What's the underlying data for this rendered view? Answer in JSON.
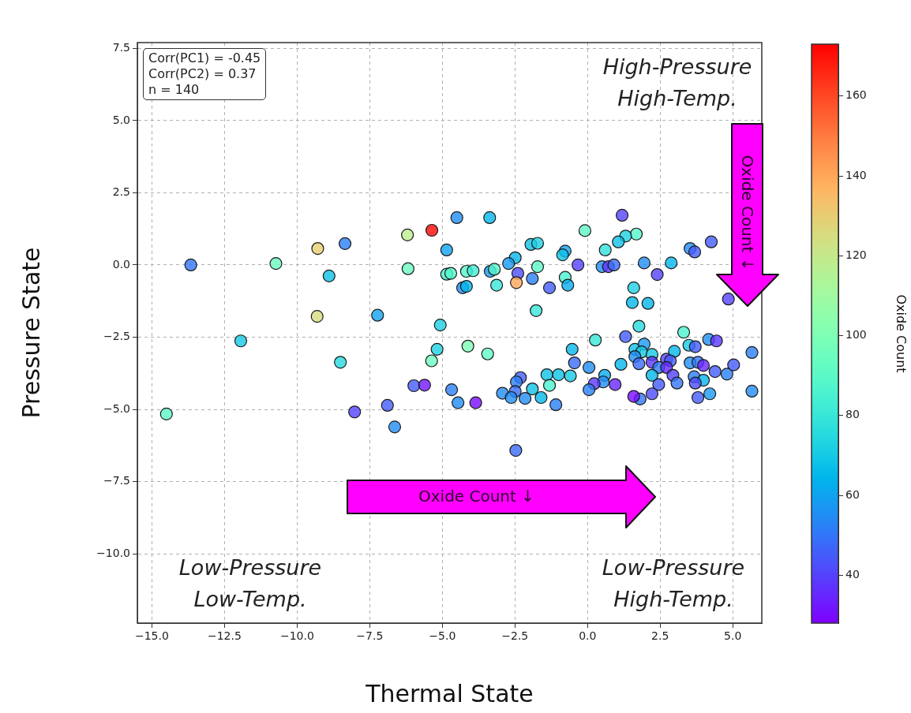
{
  "chart_data": {
    "type": "scatter",
    "xlabel": "Thermal State",
    "ylabel": "Pressure State",
    "clabel": "Oxide Count",
    "annotations": [
      "Corr(PC1) = -0.45\nCorr(PC2) = 0.37\nn = 140",
      "High-Pressure\nHigh-Temp.",
      "Low-Pressure\nLow-Temp.",
      "Low-Pressure\nHigh-Temp.",
      "Oxide Count ↓",
      "Oxide Count ↓"
    ],
    "x": [
      -13.66,
      -10.73,
      -9.29,
      -8.35,
      -8.9,
      -6.2,
      -5.36,
      -6.18,
      -4.85,
      -4.85,
      -9.31,
      -7.23,
      -5.07,
      -11.94,
      -8.51,
      -5.18,
      -5.37,
      -5.98,
      -5.61,
      -4.68,
      -6.89,
      -8.02,
      -6.64,
      -14.5,
      -4.5,
      -3.37,
      1.19,
      -0.09,
      1.68,
      1.31,
      1.06,
      4.26,
      3.53,
      3.69,
      0.61,
      -1.95,
      -1.72,
      -0.77,
      -0.86,
      -2.49,
      -2.72,
      1.95,
      2.88,
      -0.33,
      0.5,
      0.72,
      0.91,
      -4.71,
      -4.17,
      -3.94,
      -3.35,
      -3.21,
      -2.4,
      -1.72,
      -2.45,
      -1.9,
      -0.77,
      -0.68,
      -1.31,
      -3.13,
      -4.3,
      -4.17,
      2.4,
      1.59,
      4.85,
      1.54,
      2.08,
      -1.77,
      1.77,
      3.31,
      1.31,
      0.27,
      -4.12,
      -3.44,
      4.17,
      4.44,
      3.49,
      3.71,
      5.66,
      -0.53,
      -0.45,
      0.05,
      1.15,
      1.63,
      1.95,
      1.86,
      2.22,
      1.63,
      1.77,
      2.22,
      2.72,
      2.99,
      2.85,
      2.45,
      2.72,
      2.94,
      3.08,
      2.22,
      2.45,
      2.22,
      1.81,
      1.59,
      3.53,
      3.8,
      3.99,
      4.39,
      4.8,
      5.03,
      3.67,
      3.99,
      3.71,
      3.8,
      4.21,
      5.66,
      0.59,
      0.54,
      0.23,
      0.05,
      0.95,
      -1.4,
      -1.0,
      -0.59,
      -1.31,
      -2.31,
      -2.45,
      -1.9,
      -2.49,
      -2.93,
      -2.63,
      -2.15,
      -1.6,
      -1.09,
      -4.46,
      -3.85,
      -2.47
    ],
    "values": [
      0.0,
      0.05,
      0.57,
      0.74,
      -0.38,
      1.04,
      1.2,
      -0.13,
      0.52,
      -0.32,
      -1.78,
      -1.74,
      -2.08,
      -2.63,
      -3.37,
      -2.92,
      -3.32,
      -4.18,
      -4.16,
      -4.32,
      -4.86,
      -5.09,
      -5.61,
      -5.16,
      1.64,
      1.64,
      1.72,
      1.19,
      1.07,
      1.0,
      0.8,
      0.8,
      0.57,
      0.45,
      0.52,
      0.71,
      0.75,
      0.48,
      0.35,
      0.25,
      0.05,
      0.07,
      0.07,
      0.0,
      -0.06,
      -0.06,
      0.0,
      -0.29,
      -0.22,
      -0.2,
      -0.22,
      -0.15,
      -0.29,
      -0.06,
      -0.61,
      -0.47,
      -0.43,
      -0.7,
      -0.79,
      -0.7,
      -0.79,
      -0.74,
      -0.33,
      -0.79,
      -1.18,
      -1.3,
      -1.33,
      -1.58,
      -2.12,
      -2.33,
      -2.48,
      -2.6,
      -2.81,
      -3.08,
      -2.58,
      -2.63,
      -2.78,
      -2.83,
      -3.03,
      -2.92,
      -3.39,
      -3.55,
      -3.44,
      -2.92,
      -2.74,
      -3.01,
      -3.1,
      -3.17,
      -3.42,
      -3.37,
      -3.26,
      -2.99,
      -3.32,
      -3.55,
      -3.55,
      -3.82,
      -4.09,
      -3.82,
      -4.14,
      -4.46,
      -4.64,
      -4.55,
      -3.39,
      -3.37,
      -3.48,
      -3.69,
      -3.78,
      -3.46,
      -3.87,
      -3.99,
      -4.09,
      -4.59,
      -4.46,
      -4.37,
      -3.82,
      -4.05,
      -4.11,
      -4.32,
      -4.14,
      -3.8,
      -3.8,
      -3.84,
      -4.17,
      -3.9,
      -4.05,
      -4.29,
      -4.38,
      -4.44,
      -4.59,
      -4.62,
      -4.59,
      -4.84,
      -4.77,
      -4.77,
      -6.42
    ],
    "cvalues": [
      50,
      95,
      130,
      52,
      68,
      118,
      172,
      95,
      60,
      85,
      125,
      60,
      72,
      70,
      75,
      72,
      95,
      45,
      32,
      52,
      45,
      40,
      55,
      90,
      55,
      65,
      40,
      90,
      88,
      72,
      68,
      45,
      55,
      45,
      78,
      68,
      72,
      60,
      68,
      65,
      58,
      55,
      65,
      40,
      55,
      38,
      48,
      88,
      88,
      82,
      58,
      88,
      42,
      90,
      140,
      52,
      85,
      62,
      45,
      80,
      55,
      65,
      40,
      72,
      40,
      65,
      65,
      80,
      75,
      85,
      45,
      80,
      100,
      92,
      55,
      38,
      70,
      45,
      52,
      65,
      48,
      55,
      65,
      68,
      58,
      70,
      70,
      55,
      48,
      38,
      40,
      65,
      45,
      52,
      36,
      40,
      50,
      65,
      45,
      42,
      50,
      30,
      55,
      50,
      35,
      45,
      52,
      45,
      52,
      65,
      42,
      45,
      58,
      55,
      62,
      55,
      38,
      52,
      35,
      68,
      68,
      70,
      85,
      45,
      52,
      68,
      48,
      55,
      55,
      55,
      65,
      52,
      55,
      30,
      48
    ],
    "xlim": [
      -15.5,
      6.0
    ],
    "ylim": [
      -12.4,
      7.7
    ],
    "xticks": [
      {
        "value": -15,
        "label": "−15.0"
      },
      {
        "value": -12.5,
        "label": "−12.5"
      },
      {
        "value": -10,
        "label": "−10.0"
      },
      {
        "value": -7.5,
        "label": "−7.5"
      },
      {
        "value": -5,
        "label": "−5.0"
      },
      {
        "value": -2.5,
        "label": "−2.5"
      },
      {
        "value": 0,
        "label": "0.0"
      },
      {
        "value": 2.5,
        "label": "2.5"
      },
      {
        "value": 5,
        "label": "5.0"
      }
    ],
    "yticks": [
      {
        "value": 7.5,
        "label": "7.5"
      },
      {
        "value": 5,
        "label": "5.0"
      },
      {
        "value": 2.5,
        "label": "2.5"
      },
      {
        "value": 0,
        "label": "0.0"
      },
      {
        "value": -2.5,
        "label": "−2.5"
      },
      {
        "value": -5,
        "label": "−5.0"
      },
      {
        "value": -7.5,
        "label": "−7.5"
      },
      {
        "value": -10,
        "label": "−10.0"
      }
    ],
    "clim": [
      28,
      173
    ],
    "cticks": [
      40,
      60,
      80,
      100,
      120,
      140,
      160
    ],
    "grid": true,
    "marker": "circle"
  }
}
